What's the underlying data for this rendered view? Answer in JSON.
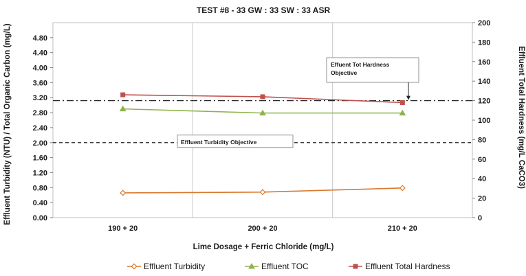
{
  "chart_data": {
    "type": "line",
    "title": "TEST #8 - 33 GW : 33 SW : 33 ASR",
    "xlabel": "Lime Dosage + Ferric Chloride (mg/L)",
    "ylabel": "Effluent Turbidity (NTU) / Total Organic Carbon (mg/L)",
    "y2label": "Effluent Total Hardness (mg/L CaCO3)",
    "categories": [
      "190 + 20",
      "200 + 20",
      "210 + 20"
    ],
    "ylim": [
      0,
      5.2
    ],
    "yticks": [
      "0.00",
      "0.40",
      "0.80",
      "1.20",
      "1.60",
      "2.00",
      "2.40",
      "2.80",
      "3.20",
      "3.60",
      "4.00",
      "4.40",
      "4.80"
    ],
    "y2lim": [
      0,
      200
    ],
    "y2ticks": [
      "0",
      "20",
      "40",
      "60",
      "80",
      "100",
      "120",
      "140",
      "160",
      "180",
      "200"
    ],
    "grid": "vertical",
    "legend_position": "bottom",
    "series": [
      {
        "name": "Effluent Turbidity",
        "axis": "left",
        "color": "#d9782d",
        "marker": "diamond",
        "values": [
          0.66,
          0.68,
          0.79
        ]
      },
      {
        "name": "Effluent TOC",
        "axis": "left",
        "color": "#8fb34a",
        "marker": "triangle",
        "values": [
          2.9,
          2.79,
          2.79
        ]
      },
      {
        "name": "Effluent Total Hardness",
        "axis": "right",
        "color": "#c0504d",
        "marker": "square",
        "values": [
          126,
          124,
          118
        ]
      }
    ],
    "reference_lines": [
      {
        "axis": "left",
        "value": 2.0,
        "style": "dashed",
        "label": "Effluent Turbidity Objective"
      },
      {
        "axis": "right",
        "value": 120,
        "style": "dashdot",
        "label": "Effuent Tot Hardness Objective"
      }
    ]
  }
}
